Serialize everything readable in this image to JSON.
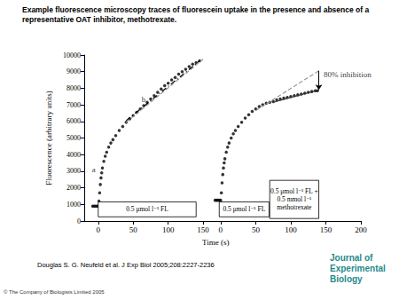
{
  "title": "Example fluorescence microscopy traces of fluorescein uptake in the presence and absence of a representative OAT inhibitor, methotrexate.",
  "citation": "Douglas S. G. Neufeld et al. J Exp Biol 2005;208:2227-2236",
  "copyright": "© The Company of Biologists Limited 2005",
  "logo": [
    "Journal of",
    "Experimental",
    "Biology"
  ],
  "chart_data": [
    {
      "type": "scatter",
      "ylabel": "Fluorescence (arbitrary units)",
      "xlim": [
        -20,
        160
      ],
      "xticks": [
        0,
        50,
        100,
        150
      ],
      "ylim": [
        0,
        10000
      ],
      "yticks": [
        0,
        1000,
        2000,
        3000,
        4000,
        5000,
        6000,
        7000,
        8000,
        9000,
        10000
      ],
      "grid": false,
      "series": [
        {
          "type": "scatter",
          "marker": "circle",
          "color": "#000000",
          "x": [
            -8,
            -6,
            -4,
            -2,
            0,
            1,
            2,
            3,
            4,
            5,
            6,
            8,
            10,
            12,
            15,
            18,
            21,
            25,
            30,
            35,
            40,
            45,
            50,
            55,
            60,
            65,
            70,
            75,
            80,
            85,
            90,
            95,
            100,
            105,
            110,
            115,
            120,
            125,
            130,
            135,
            140,
            145
          ],
          "values": [
            900,
            900,
            900,
            900,
            900,
            1200,
            1700,
            2200,
            2600,
            2900,
            3200,
            3600,
            3900,
            4150,
            4450,
            4700,
            4900,
            5150,
            5450,
            5700,
            5950,
            6150,
            6350,
            6550,
            6750,
            6950,
            7150,
            7350,
            7550,
            7750,
            7950,
            8150,
            8300,
            8500,
            8650,
            8850,
            9000,
            9150,
            9300,
            9450,
            9550,
            9650
          ]
        },
        {
          "type": "line",
          "line_style": "dashed",
          "color": "#9a9a9a",
          "x": [
            40,
            150
          ],
          "values": [
            5950,
            9750
          ]
        },
        {
          "type": "line",
          "line_style": "dashdot",
          "color": "#000000",
          "x": [
            40,
            145
          ],
          "values": [
            6050,
            9650
          ]
        }
      ],
      "annotations": [
        {
          "text": "a",
          "x": -9,
          "y": 3100
        },
        {
          "text": "b",
          "x": 62,
          "y": 7350
        },
        {
          "text": "0.5 μmol l⁻¹ FL",
          "x": [
            0,
            140
          ],
          "y": [
            250,
            1150
          ]
        }
      ]
    },
    {
      "type": "scatter",
      "xlabel": "Time (s)",
      "xlim": [
        -15,
        200
      ],
      "xticks": [
        0,
        50,
        100,
        150,
        200
      ],
      "ylim": [
        0,
        10000
      ],
      "grid": false,
      "tick_labels": "x",
      "series": [
        {
          "type": "scatter",
          "marker": "circle",
          "color": "#000000",
          "x": [
            -8,
            -6,
            -4,
            -2,
            0,
            1,
            2,
            3,
            4,
            5,
            6,
            8,
            10,
            12,
            15,
            18,
            21,
            25,
            30,
            35,
            40,
            45,
            50,
            55,
            60,
            65,
            70,
            75,
            80,
            85,
            90,
            95,
            100,
            105,
            110,
            115,
            120,
            125,
            130,
            135,
            138
          ],
          "values": [
            1250,
            1250,
            1250,
            1250,
            1250,
            1700,
            2300,
            2800,
            3200,
            3500,
            3750,
            4150,
            4450,
            4700,
            5000,
            5250,
            5450,
            5700,
            5950,
            6200,
            6400,
            6600,
            6750,
            6900,
            7000,
            7100,
            7150,
            7200,
            7300,
            7350,
            7400,
            7450,
            7500,
            7550,
            7600,
            7650,
            7700,
            7750,
            7800,
            7850,
            7850
          ]
        },
        {
          "type": "line",
          "line_style": "dashed",
          "color": "#9a9a9a",
          "x": [
            50,
            140
          ],
          "values": [
            6650,
            9050
          ]
        },
        {
          "type": "line",
          "line_style": "solid",
          "color": "#333333",
          "x": [
            75,
            140
          ],
          "values": [
            7150,
            7900
          ]
        }
      ],
      "annotations": [
        {
          "text": "80% inhibition",
          "x": 147,
          "y": 8800,
          "arrow": [
            [
              140,
              9050
            ],
            [
              140,
              7900
            ]
          ]
        },
        {
          "text": "0.5 μmol l⁻¹ FL",
          "x": [
            -2,
            69
          ],
          "y": [
            250,
            1150
          ]
        },
        {
          "text": "0.5 μmol l⁻¹ FL +\n0.5 mmol l⁻¹\nmethotrexate",
          "x": [
            70,
            140
          ],
          "y": [
            150,
            2450
          ]
        }
      ]
    }
  ]
}
